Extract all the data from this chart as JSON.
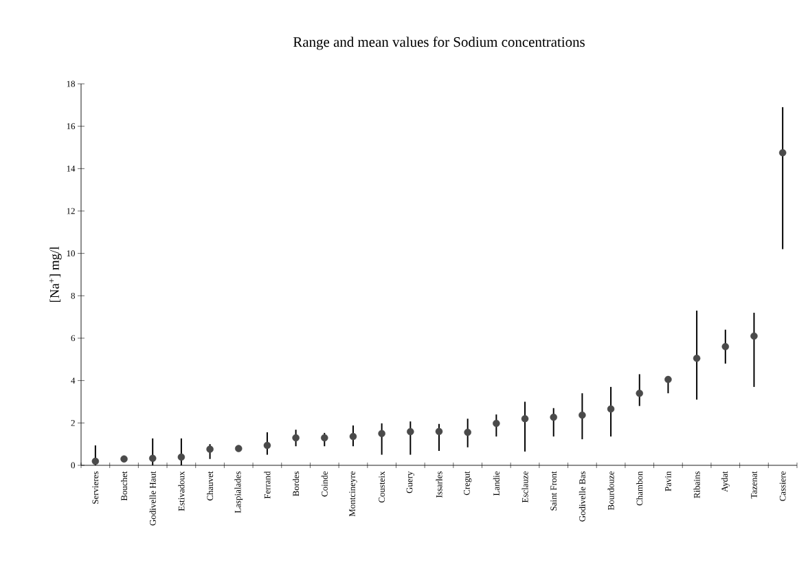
{
  "chart_data": {
    "type": "scatter",
    "title": "Range and mean values for Sodium concentrations",
    "ylabel": "[Na$^{+}$] mg/l",
    "categories": [
      "Servieres",
      "Bouchet",
      "Godivelle Haut",
      "Estivadoux",
      "Chauvet",
      "Laspialades",
      "Ferrand",
      "Bordes",
      "Coinde",
      "Montcineyre",
      "Cousteix",
      "Guery",
      "Issarles",
      "Cregut",
      "Landie",
      "Esclauze",
      "Saint Front",
      "Godivelle Bas",
      "Bourdouze",
      "Chambon",
      "Pavin",
      "Ribains",
      "Aydat",
      "Tazenat",
      "Cassiere"
    ],
    "values": [
      0.19,
      0.3,
      0.33,
      0.39,
      0.76,
      0.79,
      0.94,
      1.3,
      1.3,
      1.36,
      1.5,
      1.59,
      1.6,
      1.56,
      1.98,
      2.2,
      2.27,
      2.37,
      2.66,
      3.4,
      4.05,
      5.05,
      5.6,
      6.1,
      14.75
    ],
    "errors": [
      [
        0,
        0.94
      ],
      null,
      [
        0,
        1.27
      ],
      [
        0,
        1.27
      ],
      [
        0.3,
        1.0
      ],
      null,
      [
        0.5,
        1.56
      ],
      [
        0.9,
        1.68
      ],
      [
        0.9,
        1.53
      ],
      [
        0.9,
        1.88
      ],
      [
        0.5,
        1.98
      ],
      [
        0.5,
        2.07
      ],
      [
        0.68,
        1.95
      ],
      [
        0.85,
        2.2
      ],
      [
        1.36,
        2.4
      ],
      [
        0.65,
        3.0
      ],
      [
        1.36,
        2.7
      ],
      [
        1.23,
        3.4
      ],
      [
        1.36,
        3.7
      ],
      [
        2.8,
        4.3
      ],
      [
        3.4,
        4.2
      ],
      [
        3.1,
        7.3
      ],
      [
        4.8,
        6.4
      ],
      [
        3.7,
        7.2
      ],
      [
        10.2,
        16.9
      ]
    ],
    "color": "#4a4a4a",
    "marker": "circle",
    "ylim": [
      0,
      18
    ],
    "yticks": [
      0,
      2,
      4,
      6,
      8,
      10,
      12,
      14,
      16,
      18
    ]
  }
}
